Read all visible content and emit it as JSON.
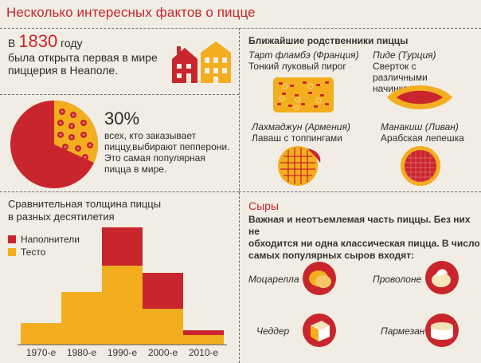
{
  "title": "Несколько интересных фактов о пицце",
  "fact1870": {
    "prefix": "В ",
    "year": "1830",
    "suffix": " году",
    "line2": "была открыта первая в мире",
    "line3": "пиццерия в Неаполе."
  },
  "pepperoni": {
    "percent": "30%",
    "line1": "всех, кто заказывает",
    "line2": "пиццу,выбирают пепперони.",
    "line3": "Это самая популярная",
    "line4": "пицца в мире."
  },
  "relatives": {
    "title": "Ближайшие родственники пиццы",
    "items": [
      {
        "name": "Тарт фламбэ (Франция)",
        "desc": "Тонкий луковый пирог"
      },
      {
        "name": "Пиде (Турция)",
        "desc": "Сверток с различными начинками"
      },
      {
        "name": "Лахмаджун (Армения)",
        "desc": "Лаваш с топпингами"
      },
      {
        "name": "Манакиш (Ливан)",
        "desc": "Арабская лепешка"
      }
    ]
  },
  "chart": {
    "title": "Сравнительная толщина пиццы в разные десятилетия",
    "title_line1": "Сравнительная толщина пиццы",
    "title_line2": "в разных десятилетия",
    "legend": [
      "Наполнители",
      "Тесто"
    ]
  },
  "chart_data": {
    "type": "bar",
    "categories": [
      "1970-е",
      "1980-е",
      "1990-е",
      "2000-е",
      "2010-е"
    ],
    "series": [
      {
        "name": "Тесто",
        "values": [
          0.9,
          2.2,
          3.3,
          1.5,
          0.4
        ]
      },
      {
        "name": "Наполнители",
        "values": [
          0,
          0,
          1.6,
          1.5,
          0.2
        ]
      }
    ],
    "colors": {
      "Наполнители": "#c9252c",
      "Тесто": "#f3ae1f"
    }
  },
  "cheeses": {
    "title": "Сыры",
    "line1": "Важная и неотъемлемая часть пиццы. Без них не",
    "line2": "обходится ни одна классическая пицца. В число",
    "line3": "самых популярных сыров входят:",
    "items": [
      "Моцарелла",
      "Проволоне",
      "Чеддер",
      "Пармезан"
    ]
  },
  "colors": {
    "red": "#c9252c",
    "yellow": "#f3ae1f",
    "bg": "#f1ede4"
  }
}
